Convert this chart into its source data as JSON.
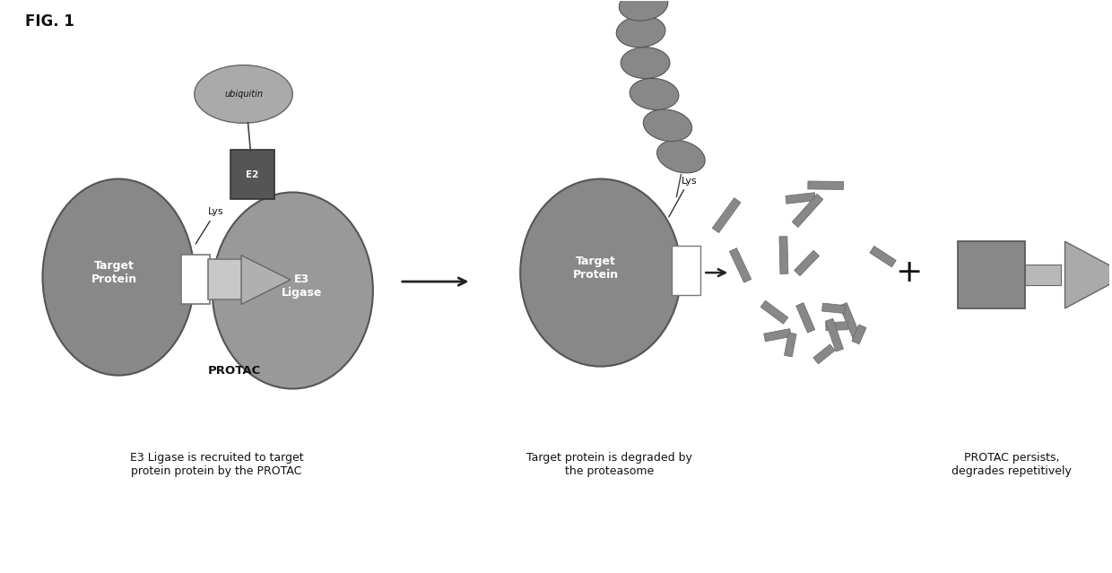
{
  "fig_label": "FIG. 1",
  "background_color": "#ffffff",
  "gray_protein": "#888888",
  "gray_e3": "#999999",
  "gray_protac_rect": "#c8c8c8",
  "gray_protac_arrow": "#b0b0b0",
  "gray_e2": "#555555",
  "gray_ubiquitin": "#aaaaaa",
  "gray_ub_chain": "#888888",
  "gray_frag": "#888888",
  "gray_panel3_sq": "#888888",
  "gray_panel3_link": "#b8b8b8",
  "gray_panel3_arr": "#aaaaaa",
  "text_white": "#ffffff",
  "text_dark": "#111111",
  "text_gray": "#333333",
  "caption1": "E3 Ligase is recruited to target\nprotein protein by the PROTAC",
  "caption2": "Target protein is degraded by\nthe proteasome",
  "caption3": "PROTAC persists,\ndegrades repetitively",
  "label_target": "Target\nProtein",
  "label_e3": "E3\nLigase",
  "label_protac": "PROTAC",
  "label_e2": "E2",
  "label_ubiquitin": "ubiquitin",
  "label_lys1": "Lys",
  "label_lys2": "Lys",
  "label_target2": "Target\nProtein",
  "fig_w": 12.4,
  "fig_h": 6.39,
  "dpi": 100
}
